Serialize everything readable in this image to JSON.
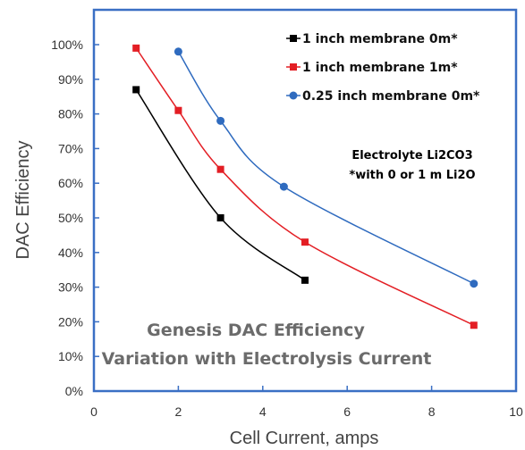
{
  "chart_data": {
    "type": "line",
    "xlabel": "Cell Current, amps",
    "ylabel": "DAC Efficiency",
    "xlim": [
      0,
      10
    ],
    "ylim": [
      0,
      105
    ],
    "x_ticks": [
      0,
      2,
      4,
      6,
      8,
      10
    ],
    "x_tick_labels": [
      "0",
      "2",
      "4",
      "6",
      "8",
      "10"
    ],
    "y_ticks": [
      0,
      10,
      20,
      30,
      40,
      50,
      60,
      70,
      80,
      90,
      100
    ],
    "y_tick_labels": [
      "0%",
      "10%",
      "20%",
      "30%",
      "40%",
      "50%",
      "60%",
      "70%",
      "80%",
      "90%",
      "100%"
    ],
    "grid": false,
    "legend_position": "top-right",
    "series": [
      {
        "name": "1 inch membrane 0m*",
        "color": "#000000",
        "marker": "square",
        "points": [
          [
            1,
            87
          ],
          [
            3,
            50
          ],
          [
            5,
            32
          ]
        ]
      },
      {
        "name": "1 inch membrane 1m*",
        "color": "#e31e24",
        "marker": "square",
        "points": [
          [
            1,
            99
          ],
          [
            2,
            81
          ],
          [
            3,
            64
          ],
          [
            5,
            43
          ],
          [
            9,
            19
          ]
        ]
      },
      {
        "name": "0.25 inch membrane 0m*",
        "color": "#2f6bbf",
        "marker": "circle",
        "points": [
          [
            2,
            98
          ],
          [
            3,
            78
          ],
          [
            4.5,
            59
          ],
          [
            9,
            31
          ]
        ]
      }
    ],
    "annotations": [
      "Electrolyte Li2CO3",
      "*with 0 or 1 m Li2O",
      "Genesis DAC Efficiency",
      "Variation with Electrolysis Current"
    ]
  },
  "frame_color": "#3a6fc4"
}
